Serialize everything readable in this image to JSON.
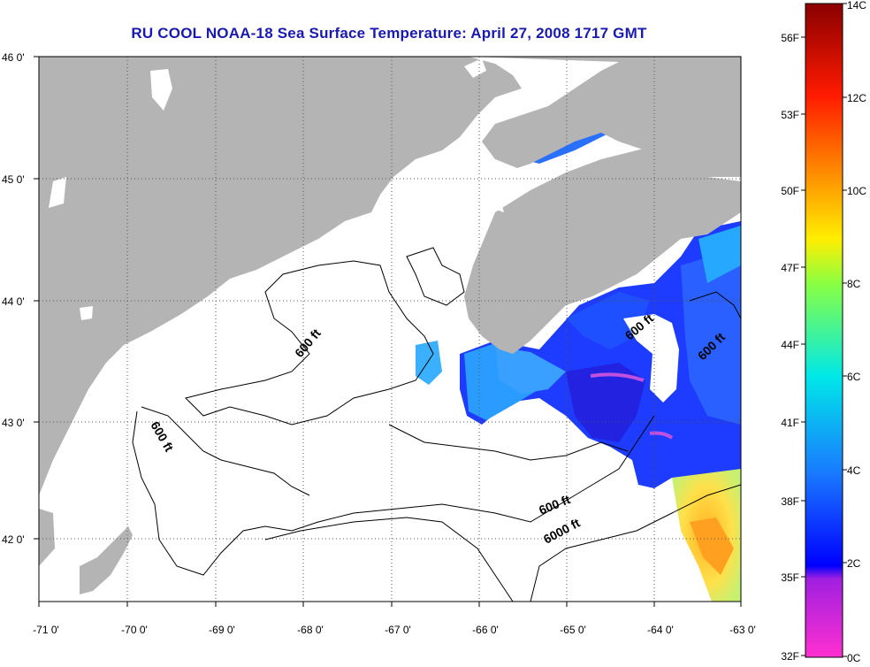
{
  "title": "RU COOL  NOAA-18  Sea Surface Temperature:  April 27, 2008 1717 GMT",
  "map": {
    "lon_ticks": [
      "-71 0'",
      "-70 0'",
      "-69 0'",
      "-68 0'",
      "-67 0'",
      "-66 0'",
      "-65 0'",
      "-64 0'",
      "-63 0'"
    ],
    "lat_ticks": [
      "46 0'",
      "45 0'",
      "44 0'",
      "43 0'",
      "42 0'"
    ],
    "contour_labels": [
      "600 ft",
      "600 ft",
      "600 ft",
      "600 ft",
      "600 ft",
      "6000 ft"
    ],
    "colors": {
      "land": "#b4b4b4",
      "water": "#ffffff",
      "grid": "#555555"
    }
  },
  "colorbar": {
    "celsius_labels": [
      "14C",
      "12C",
      "10C",
      "8C",
      "6C",
      "4C",
      "2C",
      "0C"
    ],
    "fahrenheit_labels": [
      "56F",
      "53F",
      "50F",
      "47F",
      "44F",
      "41F",
      "38F",
      "35F",
      "32F"
    ]
  }
}
